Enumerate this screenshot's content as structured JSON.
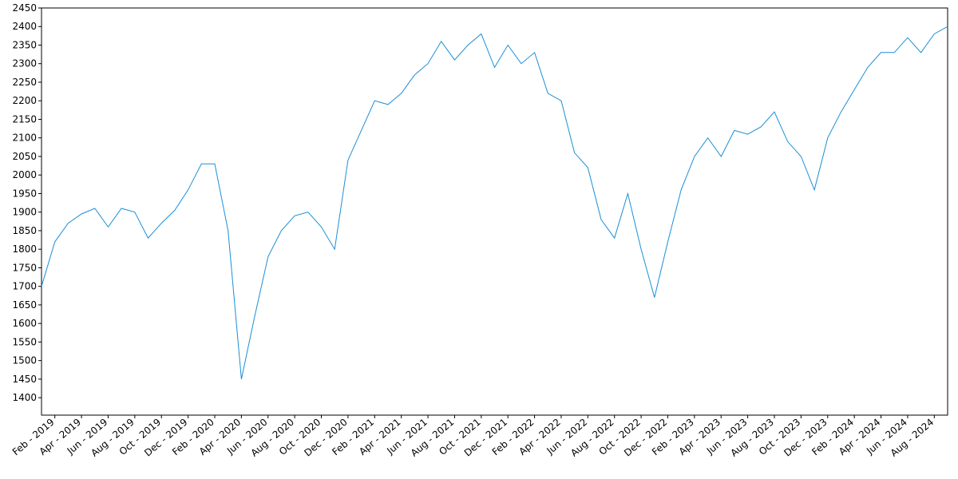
{
  "chart_data": {
    "type": "line",
    "x": [
      "2019-01",
      "2019-02",
      "2019-03",
      "2019-04",
      "2019-05",
      "2019-06",
      "2019-07",
      "2019-08",
      "2019-09",
      "2019-10",
      "2019-11",
      "2019-12",
      "2020-01",
      "2020-02",
      "2020-03",
      "2020-04",
      "2020-05",
      "2020-06",
      "2020-07",
      "2020-08",
      "2020-09",
      "2020-10",
      "2020-11",
      "2020-12",
      "2021-01",
      "2021-02",
      "2021-03",
      "2021-04",
      "2021-05",
      "2021-06",
      "2021-07",
      "2021-08",
      "2021-09",
      "2021-10",
      "2021-11",
      "2021-12",
      "2022-01",
      "2022-02",
      "2022-03",
      "2022-04",
      "2022-05",
      "2022-06",
      "2022-07",
      "2022-08",
      "2022-09",
      "2022-10",
      "2022-11",
      "2022-12",
      "2023-01",
      "2023-02",
      "2023-03",
      "2023-04",
      "2023-05",
      "2023-06",
      "2023-07",
      "2023-08",
      "2023-09",
      "2023-10",
      "2023-11",
      "2023-12",
      "2024-01",
      "2024-02",
      "2024-03",
      "2024-04",
      "2024-05",
      "2024-06",
      "2024-07",
      "2024-08",
      "2024-09"
    ],
    "series": [
      {
        "color": "#1a8fd6",
        "values": [
          1700,
          1820,
          1870,
          1895,
          1910,
          1860,
          1910,
          1900,
          1830,
          1870,
          1905,
          1960,
          2030,
          2030,
          1850,
          1450,
          1620,
          1780,
          1850,
          1890,
          1900,
          1860,
          1800,
          2040,
          2120,
          2200,
          2190,
          2220,
          2270,
          2300,
          2360,
          2310,
          2350,
          2380,
          2290,
          2350,
          2300,
          2330,
          2220,
          2200,
          2060,
          2020,
          1880,
          1830,
          1950,
          1800,
          1670,
          1820,
          1960,
          2050,
          2100,
          2050,
          2120,
          2110,
          2130,
          2170,
          2090,
          2050,
          1960,
          2100,
          2170,
          2230,
          2290,
          2330,
          2330,
          2370,
          2330,
          2380,
          2400
        ]
      }
    ],
    "xlim": [
      "2019-01",
      "2024-09"
    ],
    "xticks": [
      {
        "value": "2019-02",
        "label": "Feb - 2019"
      },
      {
        "value": "2019-04",
        "label": "Apr - 2019"
      },
      {
        "value": "2019-06",
        "label": "Jun - 2019"
      },
      {
        "value": "2019-08",
        "label": "Aug - 2019"
      },
      {
        "value": "2019-10",
        "label": "Oct - 2019"
      },
      {
        "value": "2019-12",
        "label": "Dec - 2019"
      },
      {
        "value": "2020-02",
        "label": "Feb - 2020"
      },
      {
        "value": "2020-04",
        "label": "Apr - 2020"
      },
      {
        "value": "2020-06",
        "label": "Jun - 2020"
      },
      {
        "value": "2020-08",
        "label": "Aug - 2020"
      },
      {
        "value": "2020-10",
        "label": "Oct - 2020"
      },
      {
        "value": "2020-12",
        "label": "Dec - 2020"
      },
      {
        "value": "2021-02",
        "label": "Feb - 2021"
      },
      {
        "value": "2021-04",
        "label": "Apr - 2021"
      },
      {
        "value": "2021-06",
        "label": "Jun - 2021"
      },
      {
        "value": "2021-08",
        "label": "Aug - 2021"
      },
      {
        "value": "2021-10",
        "label": "Oct - 2021"
      },
      {
        "value": "2021-12",
        "label": "Dec - 2021"
      },
      {
        "value": "2022-02",
        "label": "Feb - 2022"
      },
      {
        "value": "2022-04",
        "label": "Apr - 2022"
      },
      {
        "value": "2022-06",
        "label": "Jun - 2022"
      },
      {
        "value": "2022-08",
        "label": "Aug - 2022"
      },
      {
        "value": "2022-10",
        "label": "Oct - 2022"
      },
      {
        "value": "2022-12",
        "label": "Dec - 2022"
      },
      {
        "value": "2023-02",
        "label": "Feb - 2023"
      },
      {
        "value": "2023-04",
        "label": "Apr - 2023"
      },
      {
        "value": "2023-06",
        "label": "Jun - 2023"
      },
      {
        "value": "2023-08",
        "label": "Aug - 2023"
      },
      {
        "value": "2023-10",
        "label": "Oct - 2023"
      },
      {
        "value": "2023-12",
        "label": "Dec - 2023"
      },
      {
        "value": "2024-02",
        "label": "Feb - 2024"
      },
      {
        "value": "2024-04",
        "label": "Apr - 2024"
      },
      {
        "value": "2024-06",
        "label": "Jun - 2024"
      },
      {
        "value": "2024-08",
        "label": "Aug - 2024"
      }
    ],
    "ylim": [
      1353,
      2450
    ],
    "yticks": [
      1400,
      1450,
      1500,
      1550,
      1600,
      1650,
      1700,
      1750,
      1800,
      1850,
      1900,
      1950,
      2000,
      2050,
      2100,
      2150,
      2200,
      2250,
      2300,
      2350,
      2400,
      2450
    ]
  }
}
